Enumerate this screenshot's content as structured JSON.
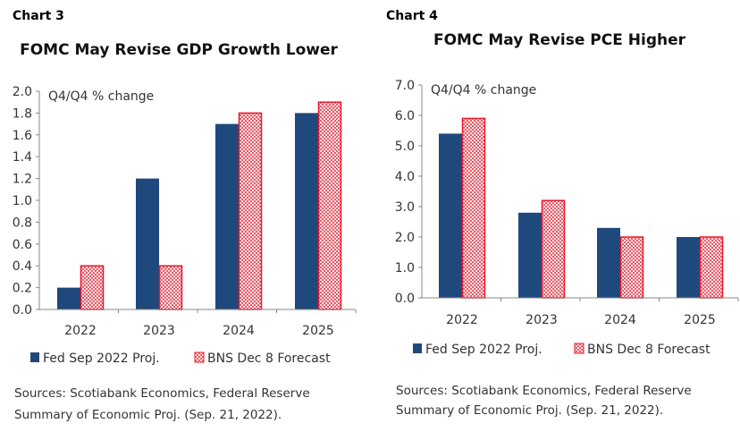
{
  "colors": {
    "fed": "#1f497d",
    "bns": "#e8192c",
    "bns_fill": "#f6c4c8"
  },
  "chart_data": [
    {
      "type": "bar",
      "label": "Chart 3",
      "title": "FOMC May Revise GDP Growth Lower",
      "ylabel": "Q4/Q4 % change",
      "categories": [
        "2022",
        "2023",
        "2024",
        "2025"
      ],
      "ylim": [
        0,
        2.0
      ],
      "yticks": [
        "0.0",
        "0.2",
        "0.4",
        "0.6",
        "0.8",
        "1.0",
        "1.2",
        "1.4",
        "1.6",
        "1.8",
        "2.0"
      ],
      "series": [
        {
          "name": "Fed Sep 2022 Proj.",
          "values": [
            0.2,
            1.2,
            1.7,
            1.8
          ]
        },
        {
          "name": "BNS Dec 8 Forecast",
          "values": [
            0.4,
            0.4,
            1.8,
            1.9
          ]
        }
      ],
      "legend": "bottom",
      "grid": false,
      "sources": [
        "Sources: Scotiabank Economics, Federal Reserve",
        "Summary of Economic Proj. (Sep. 21, 2022)."
      ]
    },
    {
      "type": "bar",
      "label": "Chart 4",
      "title": "FOMC May Revise PCE Higher",
      "ylabel": "Q4/Q4 % change",
      "categories": [
        "2022",
        "2023",
        "2024",
        "2025"
      ],
      "ylim": [
        0,
        7.0
      ],
      "yticks": [
        "0.0",
        "1.0",
        "2.0",
        "3.0",
        "4.0",
        "5.0",
        "6.0",
        "7.0"
      ],
      "series": [
        {
          "name": "Fed Sep 2022 Proj.",
          "values": [
            5.4,
            2.8,
            2.3,
            2.0
          ]
        },
        {
          "name": "BNS Dec 8 Forecast",
          "values": [
            5.9,
            3.2,
            2.0,
            2.0
          ]
        }
      ],
      "legend": "bottom",
      "grid": false,
      "sources": [
        "Sources: Scotiabank Economics, Federal Reserve",
        "Summary of Economic Proj. (Sep. 21, 2022)."
      ]
    }
  ]
}
